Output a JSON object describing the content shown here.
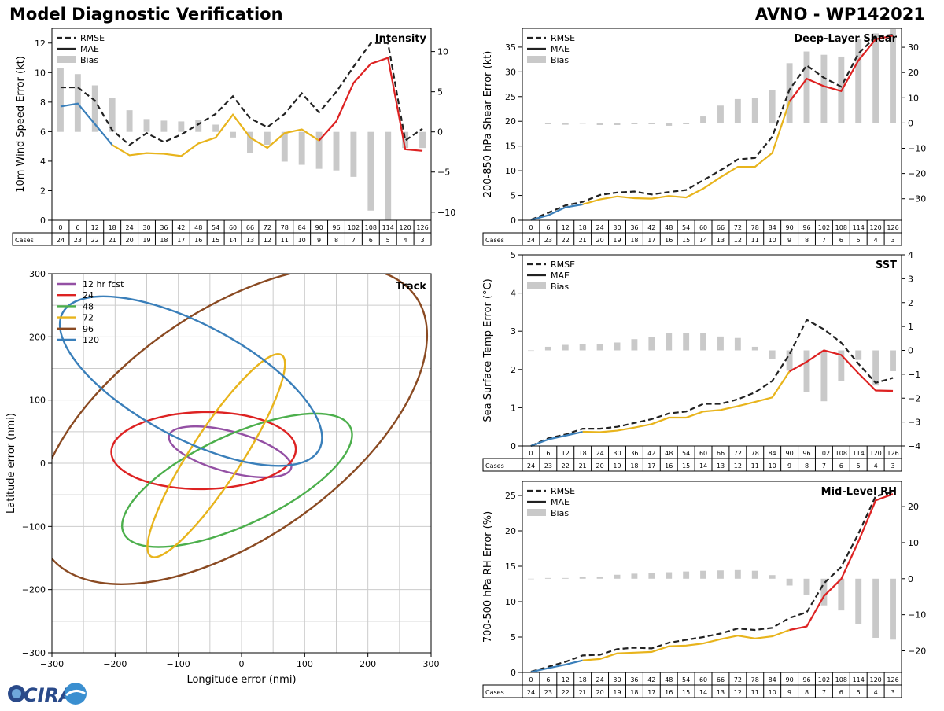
{
  "header": {
    "title": "Model Diagnostic Verification",
    "model_storm": "AVNO - WP142021"
  },
  "logo": {
    "text": "CIRA"
  },
  "colors": {
    "early": "#3a7fba",
    "mid": "#e8b41c",
    "late": "#dd2222",
    "rmse": "#222222",
    "bias": "#c9c9c9",
    "grid": "#cccccc"
  },
  "legend": {
    "rmse": "RMSE",
    "mae": "MAE",
    "bias": "Bias"
  },
  "table": {
    "cases_label": "Cases",
    "hours": [
      "0",
      "6",
      "12",
      "18",
      "24",
      "30",
      "36",
      "42",
      "48",
      "54",
      "60",
      "66",
      "72",
      "78",
      "84",
      "90",
      "96",
      "102",
      "108",
      "114",
      "120",
      "126"
    ],
    "cases_intensity": [
      "24",
      "23",
      "22",
      "21",
      "20",
      "19",
      "18",
      "17",
      "16",
      "15",
      "14",
      "13",
      "12",
      "11",
      "10",
      "9",
      "8",
      "7",
      "6",
      "5",
      "4",
      "3"
    ],
    "cases_other": [
      "24",
      "23",
      "22",
      "21",
      "20",
      "19",
      "18",
      "17",
      "16",
      "15",
      "14",
      "13",
      "12",
      "11",
      "10",
      "9",
      "8",
      "7",
      "6",
      "5",
      "4",
      "3"
    ]
  },
  "chart_data": [
    {
      "id": "intensity",
      "type": "line",
      "title": "Intensity",
      "ylabel": "10m Wind Speed Error (kt)",
      "ylim": [
        0,
        13
      ],
      "yticks": [
        "0",
        "2",
        "4",
        "6",
        "8",
        "10",
        "12"
      ],
      "y2lim": [
        -11,
        12.9
      ],
      "y2ticks": [
        "10",
        "5",
        "0",
        "−5",
        "−10"
      ],
      "rmse": [
        9.0,
        9.0,
        8.1,
        6.1,
        5.1,
        5.9,
        5.3,
        5.8,
        6.5,
        7.2,
        8.4,
        6.9,
        6.3,
        7.2,
        8.6,
        7.3,
        8.7,
        10.4,
        12.0,
        12.0,
        5.4,
        6.2
      ],
      "mae": [
        7.7,
        7.9,
        6.5,
        5.1,
        4.4,
        4.55,
        4.5,
        4.35,
        5.2,
        5.6,
        7.15,
        5.6,
        4.9,
        5.9,
        6.15,
        5.4,
        6.7,
        9.3,
        10.6,
        11.0,
        4.8,
        4.7
      ],
      "bias": [
        8.0,
        7.2,
        5.8,
        4.2,
        2.7,
        1.6,
        1.4,
        1.3,
        1.5,
        0.9,
        -0.7,
        -2.6,
        -1.6,
        -3.7,
        -4.1,
        -4.6,
        -4.8,
        -5.6,
        -9.8,
        -11.0,
        -2.0,
        -2.0
      ]
    },
    {
      "id": "shear",
      "type": "line",
      "title": "Deep-Layer Shear",
      "ylabel": "200-850 hPa Shear Error (kt)",
      "ylim": [
        0,
        38.8
      ],
      "yticks": [
        "0",
        "5",
        "10",
        "15",
        "20",
        "25",
        "30",
        "35"
      ],
      "y2lim": [
        -38.5,
        37.5
      ],
      "y2ticks": [
        "30",
        "20",
        "10",
        "0",
        "−10",
        "−20",
        "−30"
      ],
      "rmse": [
        0.1,
        1.5,
        3.0,
        3.7,
        5.1,
        5.6,
        5.8,
        5.2,
        5.7,
        6.1,
        8.1,
        10.1,
        12.3,
        12.6,
        16.9,
        26.4,
        31.3,
        28.8,
        27.0,
        33.7,
        37.1,
        37.5
      ],
      "mae": [
        0.05,
        1.0,
        2.6,
        3.2,
        4.2,
        4.8,
        4.45,
        4.35,
        4.9,
        4.6,
        6.4,
        8.7,
        10.8,
        10.8,
        13.6,
        24.0,
        28.6,
        27.1,
        26.1,
        32.3,
        36.6,
        37.3
      ],
      "bias": [
        0,
        -0.5,
        -0.7,
        -0.3,
        -0.8,
        -0.8,
        -0.5,
        -0.5,
        -1.1,
        -0.5,
        2.6,
        6.9,
        9.5,
        9.8,
        13.2,
        23.7,
        28.3,
        27.0,
        26.3,
        33.1,
        35.5,
        37.2
      ]
    },
    {
      "id": "sst",
      "type": "line",
      "title": "SST",
      "ylabel": "Sea Surface Temp Error (°C)",
      "ylim": [
        0,
        5
      ],
      "yticks": [
        "0",
        "1",
        "2",
        "3",
        "4",
        "5"
      ],
      "y2lim": [
        -4,
        4
      ],
      "y2ticks": [
        "4",
        "3",
        "2",
        "1",
        "0",
        "−1",
        "−2",
        "−3",
        "−4"
      ],
      "rmse": [
        0.0,
        0.2,
        0.3,
        0.45,
        0.45,
        0.5,
        0.6,
        0.7,
        0.85,
        0.9,
        1.1,
        1.1,
        1.22,
        1.4,
        1.7,
        2.4,
        3.3,
        3.05,
        2.7,
        2.15,
        1.65,
        1.78
      ],
      "mae": [
        0.0,
        0.17,
        0.27,
        0.37,
        0.36,
        0.4,
        0.48,
        0.57,
        0.74,
        0.74,
        0.9,
        0.94,
        1.04,
        1.15,
        1.27,
        1.95,
        2.2,
        2.5,
        2.38,
        1.9,
        1.45,
        1.44
      ],
      "bias": [
        0,
        0.15,
        0.23,
        0.25,
        0.28,
        0.33,
        0.47,
        0.56,
        0.72,
        0.72,
        0.72,
        0.58,
        0.52,
        0.15,
        -0.35,
        -0.85,
        -1.73,
        -2.13,
        -1.3,
        -0.4,
        -1.47,
        -0.87
      ]
    },
    {
      "id": "rh",
      "type": "line",
      "title": "Mid-Level RH",
      "ylabel": "700-500 hPa RH Error (%)",
      "ylim": [
        0,
        27
      ],
      "yticks": [
        "0",
        "5",
        "10",
        "15",
        "20",
        "25"
      ],
      "y2lim": [
        -26,
        27
      ],
      "y2ticks": [
        "20",
        "10",
        "0",
        "−10",
        "−20"
      ],
      "rmse": [
        0.1,
        0.8,
        1.5,
        2.4,
        2.5,
        3.3,
        3.5,
        3.4,
        4.2,
        4.6,
        5.0,
        5.5,
        6.2,
        6.0,
        6.3,
        7.7,
        8.5,
        12.6,
        14.9,
        19.6,
        24.9,
        25.5
      ],
      "mae": [
        0.05,
        0.6,
        1.1,
        1.7,
        1.9,
        2.7,
        2.8,
        2.9,
        3.7,
        3.8,
        4.1,
        4.7,
        5.2,
        4.8,
        5.1,
        6.0,
        6.5,
        10.8,
        13.2,
        18.5,
        24.3,
        25.2
      ],
      "bias": [
        0,
        0.2,
        0.2,
        0.4,
        0.6,
        1.1,
        1.4,
        1.5,
        1.8,
        2.0,
        2.2,
        2.3,
        2.4,
        2.2,
        1.0,
        -1.9,
        -4.4,
        -7.4,
        -8.8,
        -12.5,
        -16.4,
        -16.9
      ]
    },
    {
      "id": "track",
      "type": "scatter",
      "title": "Track",
      "xlabel": "Longitude error (nmi)",
      "ylabel": "Latitude error (nmi)",
      "xlim": [
        -300,
        300
      ],
      "ylim": [
        -300,
        300
      ],
      "xticks": [
        "−300",
        "−200",
        "−100",
        "0",
        "100",
        "200",
        "300"
      ],
      "yticks": [
        "−300",
        "−200",
        "−100",
        "0",
        "100",
        "200",
        "300"
      ],
      "ellipses": [
        {
          "label": "12 hr fcst",
          "color": "#9450a4",
          "cx": -18,
          "cy": 18,
          "a": 100,
          "b": 32,
          "angle": -15
        },
        {
          "label": "24",
          "color": "#dd2222",
          "cx": -60,
          "cy": 20,
          "a": 146,
          "b": 61,
          "angle": 1
        },
        {
          "label": "48",
          "color": "#4caf4c",
          "cx": -7,
          "cy": -27,
          "a": 198,
          "b": 71,
          "angle": 25
        },
        {
          "label": "72",
          "color": "#e8b41c",
          "cx": -40,
          "cy": 12,
          "a": 190,
          "b": 40,
          "angle": 57
        },
        {
          "label": "96",
          "color": "#8a4a22",
          "cx": -15,
          "cy": 60,
          "a": 355,
          "b": 180,
          "angle": 35
        },
        {
          "label": "120",
          "color": "#3a7fba",
          "cx": -80,
          "cy": 130,
          "a": 230,
          "b": 90,
          "angle": -28
        }
      ]
    }
  ]
}
